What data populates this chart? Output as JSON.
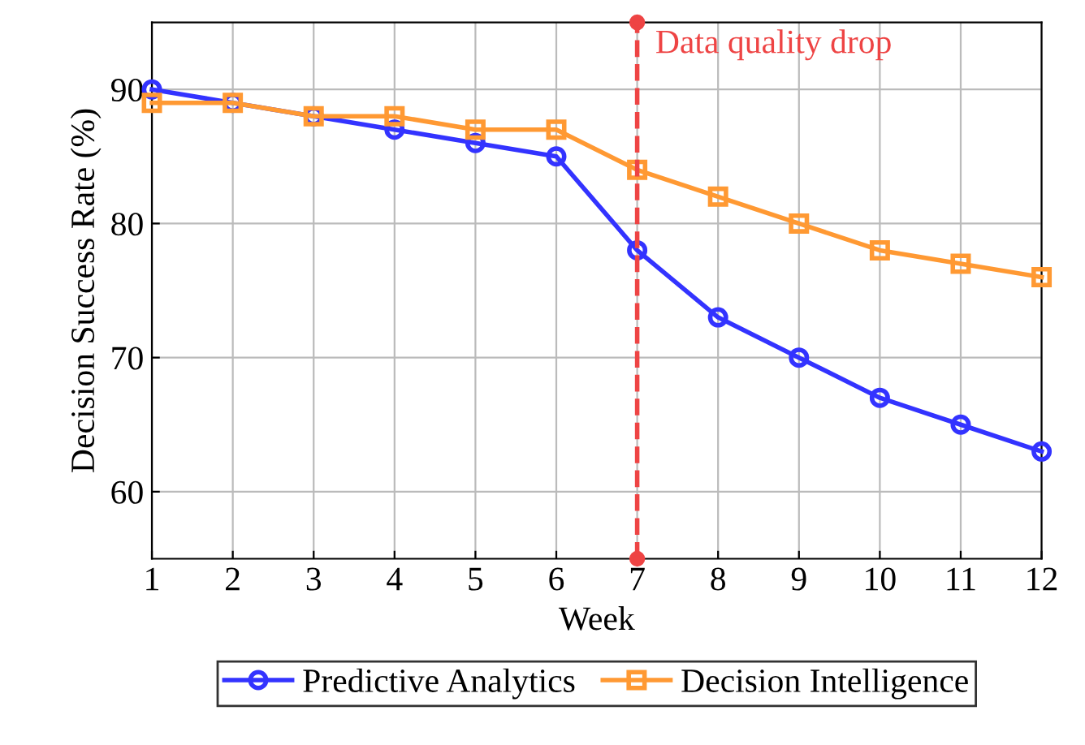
{
  "chart_data": {
    "type": "line",
    "xlabel": "Week",
    "ylabel": "Decision Success Rate (%)",
    "x": [
      1,
      2,
      3,
      4,
      5,
      6,
      7,
      8,
      9,
      10,
      11,
      12
    ],
    "series": [
      {
        "name": "Predictive Analytics",
        "color": "#3333ff",
        "marker": "circle",
        "values": [
          90,
          89,
          88,
          87,
          86,
          85,
          78,
          73,
          70,
          67,
          65,
          63
        ]
      },
      {
        "name": "Decision Intelligence",
        "color": "#ff9933",
        "marker": "square",
        "values": [
          89,
          89,
          88,
          88,
          87,
          87,
          84,
          82,
          80,
          78,
          77,
          76
        ]
      },
      {
        "color": "#ee4444",
        "marker": "circle",
        "line_style": "dashed",
        "x": [
          7,
          7
        ],
        "values": [
          55,
          95
        ]
      }
    ],
    "annotations": [
      {
        "text": "Data quality drop",
        "x": 7,
        "y": 95
      }
    ],
    "xlim": [
      1,
      12
    ],
    "ylim": [
      55,
      95
    ],
    "xticks": [
      1,
      2,
      3,
      4,
      5,
      6,
      7,
      8,
      9,
      10,
      11,
      12
    ],
    "yticks": [
      60,
      70,
      80,
      90
    ],
    "grid": true,
    "legend": "bottom",
    "line_style": "solid"
  }
}
